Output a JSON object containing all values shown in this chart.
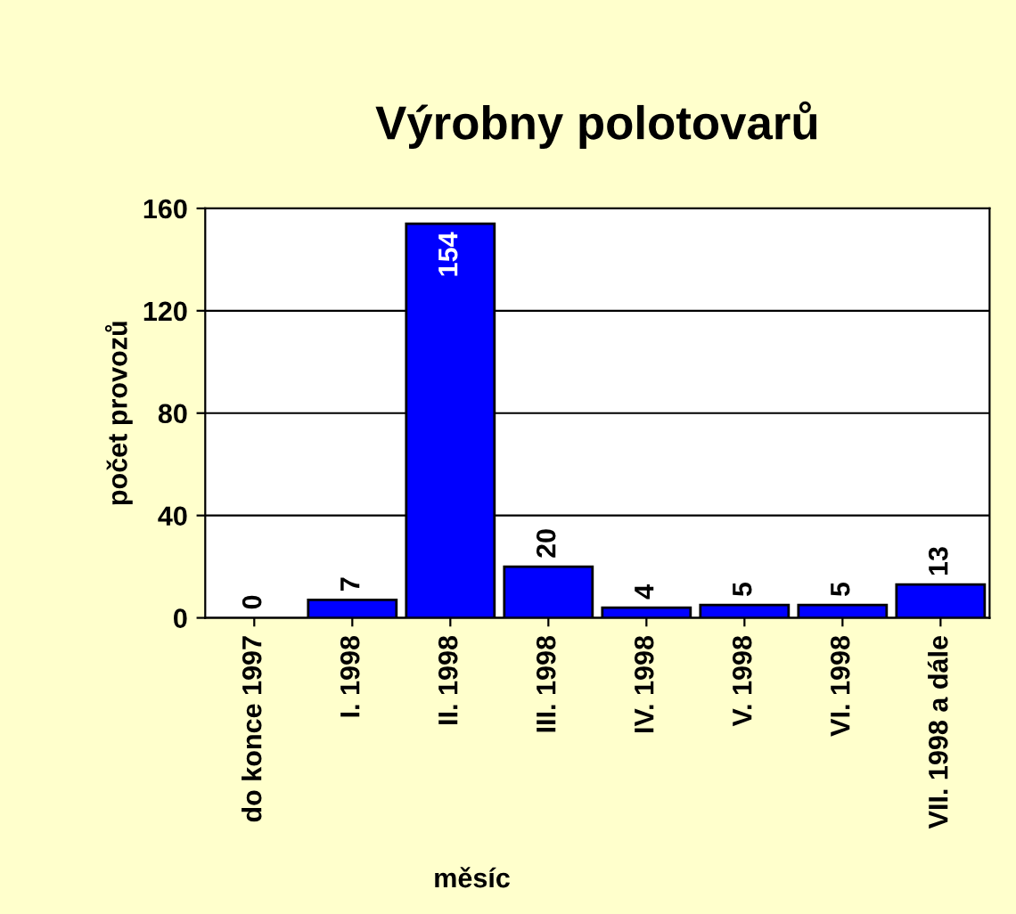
{
  "chart_data": {
    "type": "bar",
    "title": "Výrobny polotovarů",
    "xlabel": "měsíc",
    "ylabel": "počet provozů",
    "categories": [
      "do konce 1997",
      "I. 1998",
      "II. 1998",
      "III. 1998",
      "IV. 1998",
      "V. 1998",
      "VI. 1998",
      "VII. 1998 a dále"
    ],
    "values": [
      0,
      7,
      154,
      20,
      4,
      5,
      5,
      13
    ],
    "color": "#0000ff",
    "ylim": [
      0,
      160
    ],
    "yticks": [
      0,
      40,
      80,
      120,
      160
    ],
    "grid": "y",
    "data_labels": true
  }
}
